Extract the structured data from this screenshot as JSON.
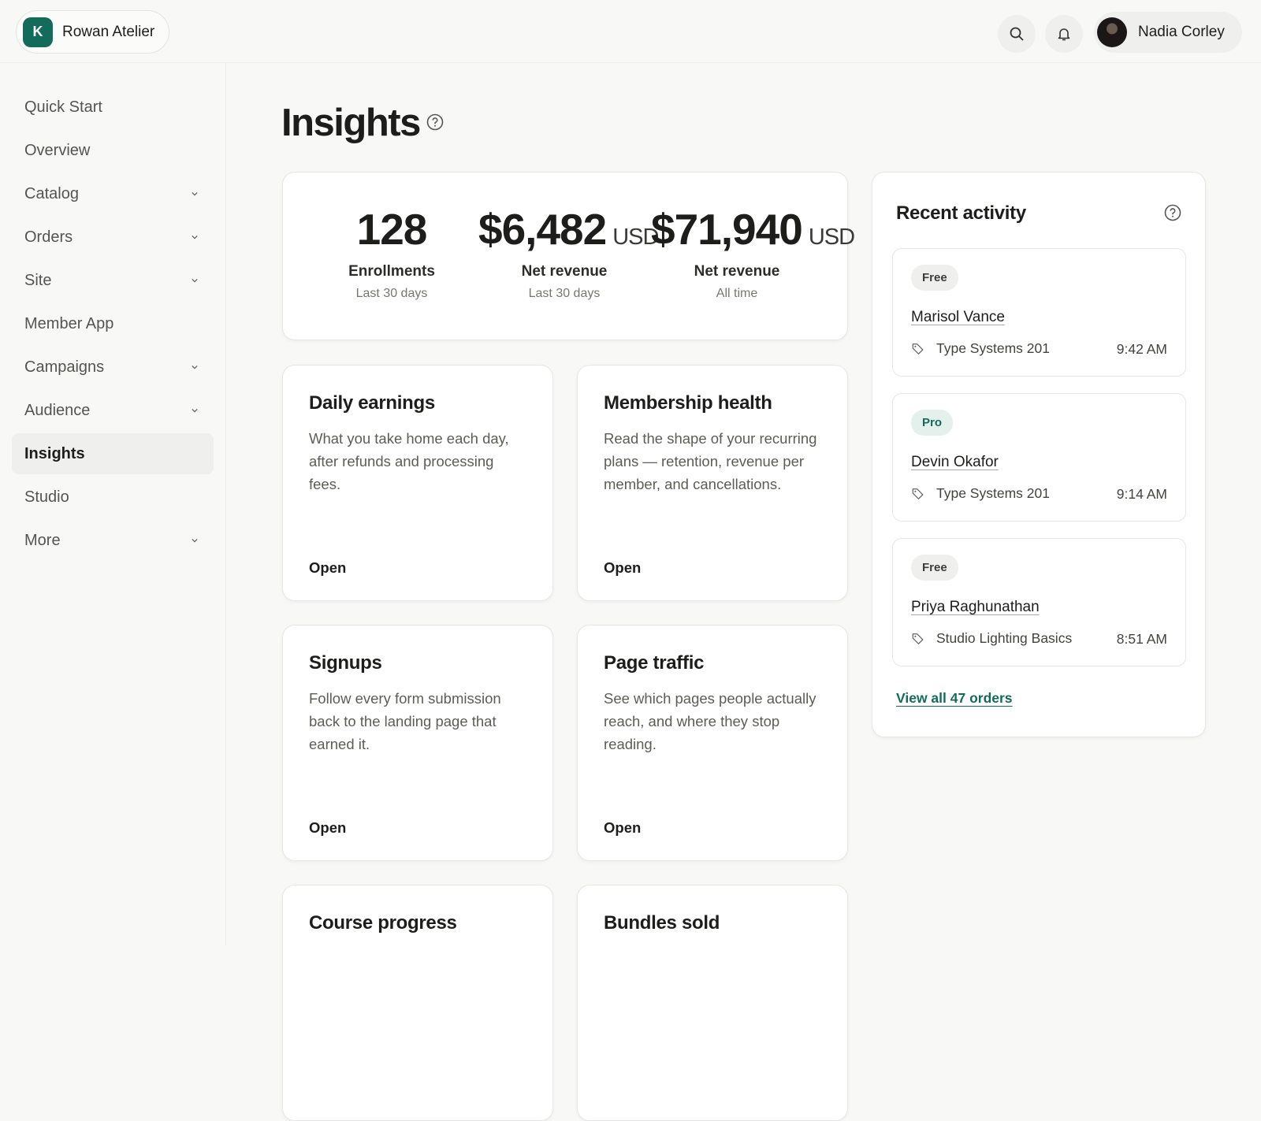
{
  "header": {
    "brand_initial": "K",
    "brand": "Rowan Atelier",
    "user": "Nadia Corley"
  },
  "nav": [
    {
      "label": "Quick Start",
      "expandable": false,
      "active": false
    },
    {
      "label": "Overview",
      "expandable": false,
      "active": false
    },
    {
      "label": "Catalog",
      "expandable": true,
      "active": false
    },
    {
      "label": "Orders",
      "expandable": true,
      "active": false
    },
    {
      "label": "Site",
      "expandable": true,
      "active": false
    },
    {
      "label": "Member App",
      "expandable": false,
      "active": false
    },
    {
      "label": "Campaigns",
      "expandable": true,
      "active": false
    },
    {
      "label": "Audience",
      "expandable": true,
      "active": false
    },
    {
      "label": "Insights",
      "expandable": false,
      "active": true
    },
    {
      "label": "Studio",
      "expandable": false,
      "active": false
    },
    {
      "label": "More",
      "expandable": true,
      "active": false
    }
  ],
  "page": {
    "title": "Insights"
  },
  "stats": [
    {
      "value": "128",
      "label": "Enrollments",
      "period": "Last 30 days"
    },
    {
      "value": "$6,482",
      "unit": "USD",
      "label": "Net revenue",
      "period": "Last 30 days"
    },
    {
      "value": "$71,940",
      "unit": "USD",
      "label": "Net revenue",
      "period": "All time"
    }
  ],
  "cards": [
    {
      "title": "Daily earnings",
      "description": "What you take home each day, after refunds and processing fees.",
      "action": "Open"
    },
    {
      "title": "Membership health",
      "description": "Read the shape of your recurring plans — retention, revenue per member, and cancellations.",
      "action": "Open"
    },
    {
      "title": "Signups",
      "description": "Follow every form submission back to the landing page that earned it.",
      "action": "Open"
    },
    {
      "title": "Page traffic",
      "description": "See which pages people actually reach, and where they stop reading.",
      "action": "Open"
    },
    {
      "title": "Course progress"
    },
    {
      "title": "Bundles sold"
    }
  ],
  "activity": {
    "title": "Recent activity",
    "items": [
      {
        "badge": "Free",
        "name": "Marisol Vance",
        "product": "Type Systems 201",
        "time": "9:42 AM"
      },
      {
        "badge": "Pro",
        "name": "Devin Okafor",
        "product": "Type Systems 201",
        "time": "9:14 AM"
      },
      {
        "badge": "Free",
        "name": "Priya Raghunathan",
        "product": "Studio Lighting Basics",
        "time": "8:51 AM"
      }
    ],
    "link": "View all 47 orders"
  }
}
